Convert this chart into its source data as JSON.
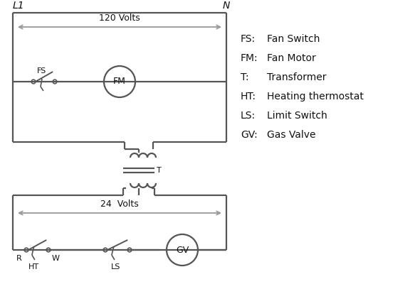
{
  "bg_color": "#ffffff",
  "line_color": "#555555",
  "text_color": "#111111",
  "line_width": 1.6,
  "legend_items": [
    [
      "FS:",
      "Fan Switch"
    ],
    [
      "FM:",
      "Fan Motor"
    ],
    [
      "T:",
      "Transformer"
    ],
    [
      "HT:",
      "Heating thermostat"
    ],
    [
      "LS:",
      "Limit Switch"
    ],
    [
      "GV:",
      "Gas Valve"
    ]
  ],
  "volts_120_label": "120 Volts",
  "volts_24_label": "24  Volts",
  "L1_label": "L1",
  "N_label": "N",
  "FS_label": "FS",
  "FM_label": "FM",
  "T_label": "T",
  "R_label": "R",
  "W_label": "W",
  "HT_label": "HT",
  "LS_label": "LS",
  "GV_label": "GV"
}
